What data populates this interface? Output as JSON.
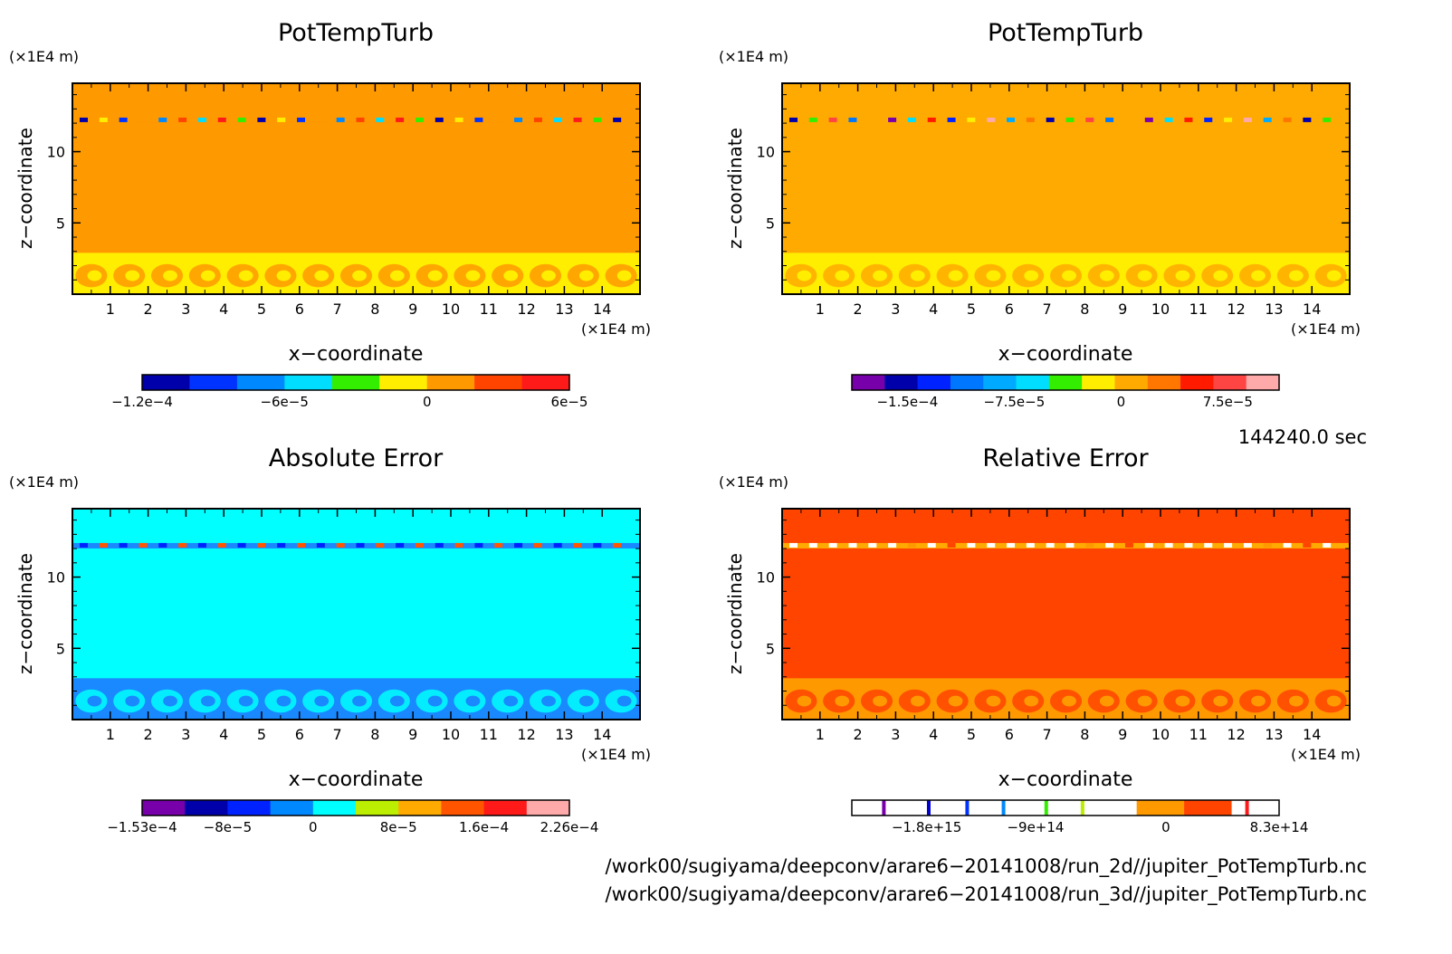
{
  "chart_data": [
    {
      "type": "heatmap",
      "title": "PotTempTurb",
      "xlabel": "x−coordinate",
      "ylabel": "z−coordinate",
      "x_unit": "(×1E4 m)",
      "y_unit": "(×1E4 m)",
      "xlim": [
        0,
        15
      ],
      "ylim": [
        0,
        14.8
      ],
      "xticks": [
        "1",
        "2",
        "3",
        "4",
        "5",
        "6",
        "7",
        "8",
        "9",
        "10",
        "11",
        "12",
        "13",
        "14"
      ],
      "yticks": [
        "5",
        "10"
      ],
      "colors": {
        "background": "#ff9900",
        "lower": "#ffee00",
        "band": "#ff9900"
      },
      "colorbar": {
        "colors": [
          "#0000aa",
          "#0033ff",
          "#0088ff",
          "#00ddff",
          "#33ee00",
          "#ffee00",
          "#ff9900",
          "#ff4400",
          "#ff1a1a"
        ],
        "tick_labels": [
          "−1.2e−4",
          "−6e−5",
          "0",
          "6e−5"
        ],
        "tick_values": [
          -0.00012,
          -6e-05,
          0,
          6e-05
        ]
      }
    },
    {
      "type": "heatmap",
      "title": "PotTempTurb",
      "xlabel": "x−coordinate",
      "ylabel": "z−coordinate",
      "x_unit": "(×1E4 m)",
      "y_unit": "(×1E4 m)",
      "xlim": [
        0,
        15
      ],
      "ylim": [
        0,
        14.8
      ],
      "xticks": [
        "1",
        "2",
        "3",
        "4",
        "5",
        "6",
        "7",
        "8",
        "9",
        "10",
        "11",
        "12",
        "13",
        "14"
      ],
      "yticks": [
        "5",
        "10"
      ],
      "colors": {
        "background": "#ffaa00",
        "lower": "#ffee00",
        "band": "#ffaa00"
      },
      "colorbar": {
        "colors": [
          "#7700aa",
          "#0000aa",
          "#0022ff",
          "#0077ff",
          "#00aaff",
          "#00ddff",
          "#33ee00",
          "#ffee00",
          "#ffaa00",
          "#ff7700",
          "#ff1a00",
          "#ff4444",
          "#ffaaaa"
        ],
        "tick_labels": [
          "−1.5e−4",
          "−7.5e−5",
          "0",
          "7.5e−5"
        ],
        "tick_values": [
          -0.00015,
          -7.5e-05,
          0,
          7.5e-05
        ]
      }
    },
    {
      "type": "heatmap",
      "title": "Absolute Error",
      "xlabel": "x−coordinate",
      "ylabel": "z−coordinate",
      "x_unit": "(×1E4 m)",
      "y_unit": "(×1E4 m)",
      "xlim": [
        0,
        15
      ],
      "ylim": [
        0,
        14.8
      ],
      "xticks": [
        "1",
        "2",
        "3",
        "4",
        "5",
        "6",
        "7",
        "8",
        "9",
        "10",
        "11",
        "12",
        "13",
        "14"
      ],
      "yticks": [
        "5",
        "10"
      ],
      "colors": {
        "background": "#00ffff",
        "lower": "#1a88ff",
        "band": "#1a88ff"
      },
      "colorbar": {
        "colors": [
          "#7700aa",
          "#0000aa",
          "#0022ff",
          "#0088ff",
          "#00ffff",
          "#bbee00",
          "#ffaa00",
          "#ff5500",
          "#ff1a1a",
          "#ffaaaa"
        ],
        "tick_labels": [
          "−1.53e−4",
          "−8e−5",
          "0",
          "8e−5",
          "1.6e−4",
          "2.26e−4"
        ],
        "tick_values": [
          -0.000153,
          -8e-05,
          0,
          8e-05,
          0.00016,
          0.000226
        ]
      }
    },
    {
      "type": "heatmap",
      "title": "Relative Error",
      "xlabel": "x−coordinate",
      "ylabel": "z−coordinate",
      "x_unit": "(×1E4 m)",
      "y_unit": "(×1E4 m)",
      "xlim": [
        0,
        15
      ],
      "ylim": [
        0,
        14.8
      ],
      "xticks": [
        "1",
        "2",
        "3",
        "4",
        "5",
        "6",
        "7",
        "8",
        "9",
        "10",
        "11",
        "12",
        "13",
        "14"
      ],
      "yticks": [
        "5",
        "10"
      ],
      "colors": {
        "background": "#ff4400",
        "lower": "#ff9900",
        "band": "#ffaa00"
      },
      "colorbar": {
        "colors": [
          "#ffffff",
          "#ffffff",
          "#ffffff",
          "#ffffff",
          "#ffffff",
          "#ffffff",
          "#ff9900",
          "#ff4400",
          "#ffffff"
        ],
        "line_colors": [
          "#7700aa",
          "#0000cc",
          "#0033ff",
          "#0088ff",
          "#33ee00",
          "#bbee00",
          "#ff1a1a"
        ],
        "tick_labels": [
          "−1.8e+15",
          "−9e+14",
          "0",
          "8.3e+14"
        ],
        "tick_values": [
          -1800000000000000.0,
          -900000000000000.0,
          0,
          830000000000000.0
        ]
      }
    }
  ],
  "time_label": "144240.0 sec",
  "file_paths": [
    "/work00/sugiyama/deepconv/arare6−20141008/run_2d//jupiter_PotTempTurb.nc",
    "/work00/sugiyama/deepconv/arare6−20141008/run_3d//jupiter_PotTempTurb.nc"
  ]
}
